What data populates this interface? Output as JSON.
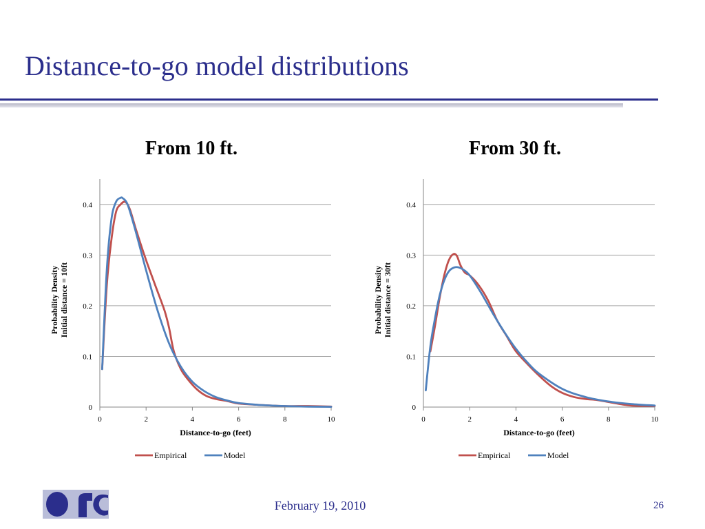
{
  "slide": {
    "title": "Distance-to-go model distributions",
    "date": "February 19, 2010",
    "page_number": "26",
    "accent_color": "#2b2e8c",
    "logo_icon": "organization-logo-icon"
  },
  "chart_data": [
    {
      "type": "line",
      "title": "From 10 ft.",
      "xlabel": "Distance-to-go (feet)",
      "ylabel": [
        "Probability Density",
        "Initial distance = 10ft"
      ],
      "xlim": [
        0,
        10
      ],
      "ylim": [
        0,
        0.45
      ],
      "xticks": [
        0,
        2,
        4,
        6,
        8,
        10
      ],
      "yticks": [
        0,
        0.1,
        0.2,
        0.3,
        0.4
      ],
      "grid": "horizontal",
      "legend": "bottom",
      "series": [
        {
          "name": "Empirical",
          "color": "#c0504d",
          "x": [
            0.1,
            0.3,
            0.5,
            0.7,
            0.9,
            1.1,
            1.3,
            1.6,
            2.0,
            2.4,
            2.8,
            3.0,
            3.2,
            3.5,
            3.8,
            4.2,
            4.6,
            5.0,
            5.5,
            6.0,
            7.0,
            8.0,
            9.0,
            10.0
          ],
          "y": [
            0.075,
            0.24,
            0.33,
            0.385,
            0.4,
            0.405,
            0.39,
            0.345,
            0.29,
            0.24,
            0.19,
            0.155,
            0.11,
            0.075,
            0.055,
            0.035,
            0.022,
            0.016,
            0.012,
            0.007,
            0.004,
            0.002,
            0.002,
            0.001
          ]
        },
        {
          "name": "Model",
          "color": "#4f81bd",
          "x": [
            0.1,
            0.3,
            0.5,
            0.7,
            0.9,
            1.0,
            1.2,
            1.5,
            2.0,
            2.5,
            3.0,
            3.5,
            4.0,
            4.5,
            5.0,
            5.5,
            6.0,
            7.0,
            8.0,
            9.0,
            10.0
          ],
          "y": [
            0.075,
            0.27,
            0.37,
            0.405,
            0.413,
            0.412,
            0.4,
            0.355,
            0.27,
            0.19,
            0.125,
            0.08,
            0.05,
            0.032,
            0.02,
            0.013,
            0.008,
            0.004,
            0.002,
            0.001,
            0.0005
          ]
        }
      ]
    },
    {
      "type": "line",
      "title": "From 30 ft.",
      "xlabel": "Distance-to-go (feet)",
      "ylabel": [
        "Probability Density",
        "Initial distance = 30ft"
      ],
      "xlim": [
        0,
        10
      ],
      "ylim": [
        0,
        0.45
      ],
      "xticks": [
        0,
        2,
        4,
        6,
        8,
        10
      ],
      "yticks": [
        0,
        0.1,
        0.2,
        0.3,
        0.4
      ],
      "grid": "horizontal",
      "legend": "bottom",
      "series": [
        {
          "name": "Empirical",
          "color": "#c0504d",
          "x": [
            0.3,
            0.5,
            0.7,
            0.9,
            1.1,
            1.3,
            1.45,
            1.6,
            1.8,
            2.0,
            2.4,
            2.8,
            3.2,
            3.6,
            4.0,
            4.5,
            5.0,
            5.5,
            6.0,
            6.5,
            7.0,
            7.5,
            8.0,
            8.5,
            9.0,
            10.0
          ],
          "y": [
            0.11,
            0.16,
            0.215,
            0.26,
            0.29,
            0.302,
            0.298,
            0.28,
            0.265,
            0.26,
            0.24,
            0.21,
            0.17,
            0.14,
            0.11,
            0.085,
            0.062,
            0.042,
            0.028,
            0.02,
            0.016,
            0.014,
            0.01,
            0.006,
            0.003,
            0.002
          ]
        },
        {
          "name": "Model",
          "color": "#4f81bd",
          "x": [
            0.1,
            0.3,
            0.5,
            0.7,
            0.9,
            1.1,
            1.3,
            1.5,
            1.7,
            2.0,
            2.5,
            3.0,
            3.5,
            4.0,
            4.5,
            5.0,
            6.0,
            7.0,
            8.0,
            9.0,
            10.0
          ],
          "y": [
            0.033,
            0.12,
            0.175,
            0.22,
            0.25,
            0.268,
            0.275,
            0.276,
            0.272,
            0.26,
            0.225,
            0.185,
            0.148,
            0.115,
            0.088,
            0.066,
            0.036,
            0.02,
            0.011,
            0.006,
            0.003
          ]
        }
      ]
    }
  ]
}
